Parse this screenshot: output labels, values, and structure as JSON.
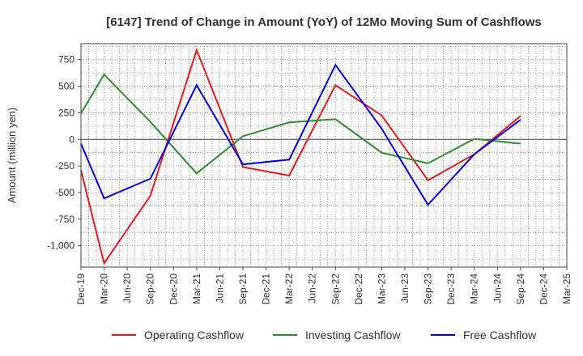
{
  "chart_data": {
    "type": "line",
    "title": "[6147]  Trend of Change in Amount (YoY) of 12Mo Moving Sum of Cashflows",
    "xlabel": "",
    "ylabel": "Amount (million yen)",
    "ylim": [
      -1200,
      900
    ],
    "yticks": [
      750,
      500,
      250,
      0,
      -250,
      -500,
      -750,
      -1000
    ],
    "ytick_labels": [
      "750",
      "500",
      "250",
      "0",
      "-250",
      "-500",
      "-750",
      "-1,000"
    ],
    "categories": [
      "Dec-19",
      "Mar-20",
      "Jun-20",
      "Sep-20",
      "Dec-20",
      "Mar-21",
      "Jun-21",
      "Sep-21",
      "Dec-21",
      "Mar-22",
      "Jun-22",
      "Sep-22",
      "Dec-22",
      "Mar-23",
      "Jun-23",
      "Sep-23",
      "Dec-23",
      "Mar-24",
      "Jun-24",
      "Sep-24",
      "Dec-24",
      "Mar-25"
    ],
    "grid": true,
    "legend_position": "bottom",
    "series": [
      {
        "name": "Operating Cashflow",
        "color": "#e41a1c",
        "points": [
          {
            "x": "Dec-19",
            "y": -290
          },
          {
            "x": "Mar-20",
            "y": -1165
          },
          {
            "x": "Sep-20",
            "y": -530
          },
          {
            "x": "Mar-21",
            "y": 840
          },
          {
            "x": "Sep-21",
            "y": -260
          },
          {
            "x": "Mar-22",
            "y": -340
          },
          {
            "x": "Sep-22",
            "y": 510
          },
          {
            "x": "Mar-23",
            "y": 225
          },
          {
            "x": "Sep-23",
            "y": -385
          },
          {
            "x": "Mar-24",
            "y": -140
          },
          {
            "x": "Sep-24",
            "y": 220
          }
        ]
      },
      {
        "name": "Investing Cashflow",
        "color": "#2e8b2e",
        "points": [
          {
            "x": "Dec-19",
            "y": 245
          },
          {
            "x": "Mar-20",
            "y": 610
          },
          {
            "x": "Sep-20",
            "y": 165
          },
          {
            "x": "Mar-21",
            "y": -320
          },
          {
            "x": "Sep-21",
            "y": 30
          },
          {
            "x": "Mar-22",
            "y": 160
          },
          {
            "x": "Sep-22",
            "y": 190
          },
          {
            "x": "Mar-23",
            "y": -125
          },
          {
            "x": "Sep-23",
            "y": -225
          },
          {
            "x": "Mar-24",
            "y": 5
          },
          {
            "x": "Sep-24",
            "y": -40
          }
        ]
      },
      {
        "name": "Free Cashflow",
        "color": "#0000dd",
        "points": [
          {
            "x": "Dec-19",
            "y": -40
          },
          {
            "x": "Mar-20",
            "y": -555
          },
          {
            "x": "Sep-20",
            "y": -370
          },
          {
            "x": "Mar-21",
            "y": 510
          },
          {
            "x": "Sep-21",
            "y": -235
          },
          {
            "x": "Mar-22",
            "y": -190
          },
          {
            "x": "Sep-22",
            "y": 700
          },
          {
            "x": "Mar-23",
            "y": 100
          },
          {
            "x": "Sep-23",
            "y": -615
          },
          {
            "x": "Mar-24",
            "y": -140
          },
          {
            "x": "Sep-24",
            "y": 185
          }
        ]
      }
    ]
  },
  "colors": {
    "plot_border": "#444444",
    "grid": "#888888",
    "zero_line": "#444444"
  }
}
